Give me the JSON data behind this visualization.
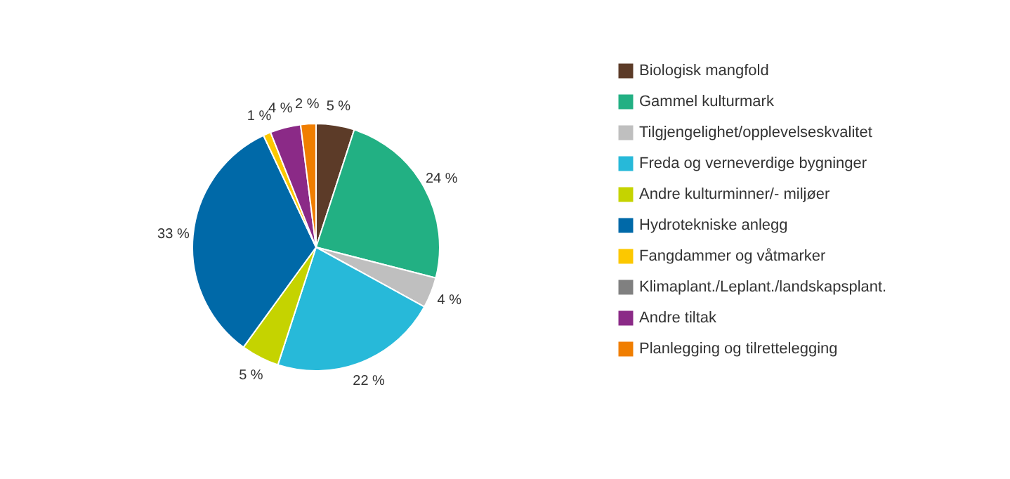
{
  "chart_data": {
    "type": "pie",
    "categories": [
      "Biologisk mangfold",
      "Gammel kulturmark",
      "Tilgjengelighet/opplevelseskvalitet",
      "Freda og verneverdige bygninger",
      "Andre kulturminner/- miljøer",
      "Hydrotekniske anlegg",
      "Fangdammer og våtmarker",
      "Klimaplant./Leplant./landskapsplant.",
      "Andre tiltak",
      "Planlegging og tilrettelegging"
    ],
    "values": [
      5,
      24,
      4,
      22,
      5,
      33,
      1,
      0,
      4,
      2
    ],
    "value_labels": [
      "5 %",
      "24 %",
      "4 %",
      "22 %",
      "5 %",
      "33 %",
      "1 %",
      null,
      "4 %",
      "2 %"
    ],
    "colors": [
      "#5c3b28",
      "#22b083",
      "#bfbfbf",
      "#27b9d9",
      "#c5d300",
      "#0069a8",
      "#fcc800",
      "#808080",
      "#8b2a87",
      "#f07e00"
    ],
    "legend": "right"
  }
}
